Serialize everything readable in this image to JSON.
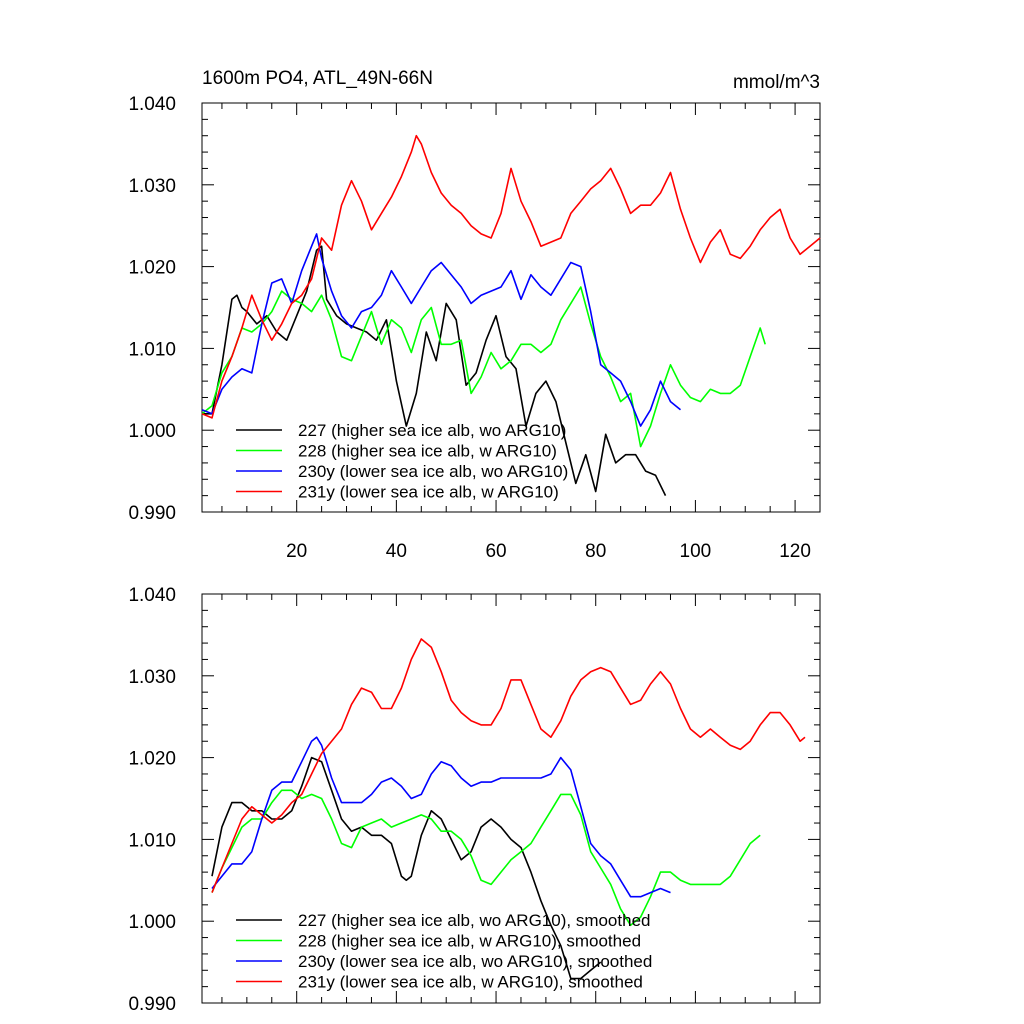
{
  "chart_data": [
    {
      "type": "line",
      "title": "1600m PO4, ATL_49N-66N",
      "units": "mmol/m^3",
      "xlabel": "",
      "ylabel": "",
      "xlim": [
        1,
        125
      ],
      "ylim": [
        0.99,
        1.04
      ],
      "xticks": [
        20,
        40,
        60,
        80,
        100,
        120
      ],
      "xtick_labels": [
        "20",
        "40",
        "60",
        "80",
        "100",
        "120"
      ],
      "yticks": [
        0.99,
        1.0,
        1.01,
        1.02,
        1.03,
        1.04
      ],
      "ytick_labels": [
        "0.990",
        "1.000",
        "1.010",
        "1.020",
        "1.030",
        "1.040"
      ],
      "legend_position": "bottom-left",
      "series": [
        {
          "name": "227 (higher sea ice alb, wo ARG10)",
          "color": "#000000",
          "x": [
            1,
            3,
            5,
            7,
            8,
            9,
            10,
            12,
            14,
            16,
            18,
            20,
            22,
            24,
            25,
            26,
            28,
            30,
            32,
            34,
            36,
            38,
            40,
            42,
            44,
            46,
            48,
            50,
            52,
            54,
            56,
            58,
            60,
            62,
            64,
            66,
            68,
            70,
            72,
            74,
            76,
            78,
            80,
            82,
            84,
            86,
            88,
            90,
            92,
            94
          ],
          "y": [
            1.002,
            1.002,
            1.008,
            1.016,
            1.0165,
            1.015,
            1.0145,
            1.013,
            1.014,
            1.012,
            1.011,
            1.014,
            1.017,
            1.022,
            1.0225,
            1.016,
            1.014,
            1.013,
            1.0125,
            1.012,
            1.011,
            1.0135,
            1.006,
            1.0005,
            1.0045,
            1.012,
            1.0085,
            1.0155,
            1.0135,
            1.0055,
            1.007,
            1.011,
            1.014,
            1.009,
            1.0075,
            1.0005,
            1.0045,
            1.006,
            1.0035,
            0.9985,
            0.9935,
            0.997,
            0.9925,
            0.9995,
            0.996,
            0.997,
            0.997,
            0.995,
            0.9945,
            0.992
          ]
        },
        {
          "name": "228 (higher sea ice alb, w ARG10)",
          "color": "#00ff00",
          "x": [
            1,
            3,
            5,
            7,
            9,
            11,
            13,
            15,
            17,
            19,
            21,
            23,
            25,
            27,
            29,
            31,
            33,
            35,
            37,
            39,
            41,
            43,
            45,
            47,
            49,
            51,
            53,
            55,
            57,
            59,
            61,
            63,
            65,
            67,
            69,
            71,
            73,
            75,
            77,
            79,
            81,
            83,
            85,
            87,
            89,
            91,
            93,
            95,
            97,
            99,
            101,
            103,
            105,
            107,
            109,
            111,
            113,
            114
          ],
          "y": [
            1.002,
            1.003,
            1.007,
            1.009,
            1.0125,
            1.012,
            1.013,
            1.0145,
            1.017,
            1.016,
            1.0155,
            1.0145,
            1.0165,
            1.0135,
            1.009,
            1.0085,
            1.0115,
            1.0145,
            1.0105,
            1.0135,
            1.0125,
            1.0095,
            1.0135,
            1.015,
            1.0105,
            1.0105,
            1.011,
            1.0045,
            1.0065,
            1.0095,
            1.0075,
            1.0085,
            1.0105,
            1.0105,
            1.0095,
            1.0105,
            1.0135,
            1.0155,
            1.0175,
            1.013,
            1.009,
            1.0065,
            1.0035,
            1.0045,
            0.998,
            1.0005,
            1.0045,
            1.008,
            1.0055,
            1.004,
            1.0035,
            1.005,
            1.0045,
            1.0045,
            1.0055,
            1.009,
            1.0125,
            1.0105
          ]
        },
        {
          "name": "230y (lower sea ice alb, wo ARG10)",
          "color": "#0000ff",
          "x": [
            1,
            3,
            5,
            7,
            9,
            11,
            13,
            15,
            17,
            19,
            21,
            23,
            24,
            25,
            27,
            29,
            31,
            33,
            35,
            37,
            39,
            41,
            43,
            45,
            47,
            49,
            51,
            53,
            55,
            57,
            59,
            61,
            63,
            65,
            67,
            69,
            71,
            73,
            75,
            77,
            79,
            81,
            83,
            85,
            87,
            89,
            91,
            93,
            95,
            97
          ],
          "y": [
            1.0025,
            1.002,
            1.005,
            1.0065,
            1.0075,
            1.007,
            1.013,
            1.018,
            1.0185,
            1.0155,
            1.0195,
            1.0225,
            1.024,
            1.021,
            1.017,
            1.014,
            1.0125,
            1.0145,
            1.015,
            1.0165,
            1.0195,
            1.0175,
            1.0155,
            1.0175,
            1.0195,
            1.0205,
            1.019,
            1.0175,
            1.0155,
            1.0165,
            1.017,
            1.0175,
            1.0195,
            1.016,
            1.019,
            1.0175,
            1.0165,
            1.0185,
            1.0205,
            1.02,
            1.0145,
            1.008,
            1.007,
            1.006,
            1.0035,
            1.0005,
            1.0025,
            1.006,
            1.0035,
            1.0025
          ]
        },
        {
          "name": "231y (lower sea ice alb, w ARG10)",
          "color": "#ff0000",
          "x": [
            1,
            3,
            5,
            7,
            9,
            11,
            13,
            15,
            17,
            19,
            21,
            23,
            25,
            27,
            29,
            31,
            33,
            35,
            37,
            39,
            41,
            43,
            44,
            45,
            47,
            49,
            51,
            53,
            55,
            57,
            59,
            61,
            63,
            65,
            67,
            69,
            71,
            73,
            75,
            77,
            79,
            81,
            83,
            85,
            87,
            89,
            91,
            93,
            95,
            97,
            99,
            101,
            103,
            105,
            107,
            109,
            111,
            113,
            115,
            117,
            119,
            121,
            123,
            125
          ],
          "y": [
            1.002,
            1.0015,
            1.006,
            1.009,
            1.0125,
            1.0165,
            1.0135,
            1.011,
            1.013,
            1.0155,
            1.0165,
            1.0185,
            1.0235,
            1.022,
            1.0275,
            1.0305,
            1.028,
            1.0245,
            1.0265,
            1.0285,
            1.031,
            1.034,
            1.036,
            1.035,
            1.0315,
            1.029,
            1.0275,
            1.0265,
            1.025,
            1.024,
            1.0235,
            1.0265,
            1.032,
            1.028,
            1.0255,
            1.0225,
            1.023,
            1.0235,
            1.0265,
            1.028,
            1.0295,
            1.0305,
            1.032,
            1.0295,
            1.0265,
            1.0275,
            1.0275,
            1.029,
            1.0315,
            1.027,
            1.0235,
            1.0205,
            1.023,
            1.0245,
            1.0215,
            1.021,
            1.0225,
            1.0245,
            1.026,
            1.027,
            1.0235,
            1.0215,
            1.0225,
            1.0235
          ]
        }
      ]
    },
    {
      "type": "line",
      "title": "",
      "xlabel": "",
      "ylabel": "",
      "xlim": [
        1,
        125
      ],
      "ylim": [
        0.99,
        1.04
      ],
      "xticks": [
        20,
        40,
        60,
        80,
        100,
        120
      ],
      "yticks": [
        0.99,
        1.0,
        1.01,
        1.02,
        1.03,
        1.04
      ],
      "ytick_labels": [
        "0.990",
        "1.000",
        "1.010",
        "1.020",
        "1.030",
        "1.040"
      ],
      "legend_position": "bottom-left",
      "series": [
        {
          "name": "227 (higher sea ice alb, wo ARG10), smoothed",
          "color": "#000000",
          "x": [
            3,
            5,
            7,
            9,
            11,
            13,
            15,
            17,
            19,
            21,
            23,
            25,
            27,
            29,
            31,
            33,
            35,
            37,
            39,
            41,
            42,
            43,
            45,
            47,
            49,
            51,
            53,
            55,
            57,
            59,
            61,
            63,
            65,
            67,
            69,
            71,
            73,
            75,
            77,
            79,
            81
          ],
          "y": [
            1.0055,
            1.0115,
            1.0145,
            1.0145,
            1.0135,
            1.0135,
            1.0125,
            1.0125,
            1.0135,
            1.0165,
            1.02,
            1.0195,
            1.016,
            1.0125,
            1.011,
            1.0115,
            1.0105,
            1.0105,
            1.0095,
            1.0055,
            1.005,
            1.0055,
            1.0105,
            1.0135,
            1.0125,
            1.01,
            1.0075,
            1.0085,
            1.0115,
            1.0125,
            1.0115,
            1.01,
            1.009,
            1.006,
            1.0025,
            0.9995,
            0.997,
            0.993,
            0.993,
            0.994,
            0.995
          ]
        },
        {
          "name": "228 (higher sea ice alb, w ARG10), smoothed",
          "color": "#00ff00",
          "x": [
            3,
            5,
            7,
            9,
            11,
            13,
            15,
            17,
            19,
            21,
            23,
            25,
            27,
            29,
            31,
            33,
            35,
            37,
            39,
            41,
            43,
            45,
            47,
            49,
            51,
            53,
            55,
            57,
            59,
            61,
            63,
            65,
            67,
            69,
            71,
            73,
            75,
            77,
            79,
            81,
            83,
            85,
            87,
            89,
            91,
            93,
            95,
            97,
            99,
            101,
            103,
            105,
            107,
            109,
            111,
            113
          ],
          "y": [
            1.0035,
            1.0065,
            1.009,
            1.0115,
            1.0125,
            1.0125,
            1.0145,
            1.016,
            1.016,
            1.015,
            1.0155,
            1.015,
            1.0125,
            1.0095,
            1.009,
            1.0115,
            1.012,
            1.0125,
            1.0115,
            1.012,
            1.0125,
            1.013,
            1.0125,
            1.011,
            1.011,
            1.01,
            1.008,
            1.005,
            1.0045,
            1.006,
            1.0075,
            1.0085,
            1.0095,
            1.0115,
            1.0135,
            1.0155,
            1.0155,
            1.013,
            1.0085,
            1.0065,
            1.0045,
            1.0015,
            0.9995,
            1.0005,
            1.003,
            1.006,
            1.006,
            1.005,
            1.0045,
            1.0045,
            1.0045,
            1.0045,
            1.0055,
            1.0075,
            1.0095,
            1.0105
          ]
        },
        {
          "name": "230y (lower sea ice alb, wo ARG10), smoothed",
          "color": "#0000ff",
          "x": [
            3,
            5,
            7,
            9,
            11,
            13,
            15,
            17,
            19,
            21,
            23,
            24,
            25,
            27,
            29,
            31,
            33,
            35,
            37,
            39,
            41,
            43,
            45,
            47,
            49,
            51,
            53,
            55,
            57,
            59,
            61,
            63,
            65,
            67,
            69,
            71,
            73,
            75,
            77,
            79,
            81,
            83,
            85,
            87,
            89,
            91,
            93,
            95
          ],
          "y": [
            1.004,
            1.0055,
            1.007,
            1.007,
            1.0085,
            1.0125,
            1.016,
            1.017,
            1.017,
            1.0195,
            1.022,
            1.0225,
            1.0215,
            1.0175,
            1.0145,
            1.0145,
            1.0145,
            1.0155,
            1.017,
            1.0175,
            1.0165,
            1.015,
            1.0155,
            1.018,
            1.0195,
            1.019,
            1.0175,
            1.0165,
            1.017,
            1.017,
            1.0175,
            1.0175,
            1.0175,
            1.0175,
            1.0175,
            1.018,
            1.02,
            1.0185,
            1.014,
            1.0095,
            1.008,
            1.007,
            1.005,
            1.003,
            1.003,
            1.0035,
            1.004,
            1.0035
          ]
        },
        {
          "name": "231y (lower sea ice alb, w ARG10), smoothed",
          "color": "#ff0000",
          "x": [
            3,
            5,
            7,
            9,
            11,
            13,
            15,
            17,
            19,
            21,
            23,
            25,
            27,
            29,
            31,
            33,
            35,
            37,
            39,
            41,
            43,
            45,
            47,
            49,
            51,
            53,
            55,
            57,
            59,
            61,
            63,
            65,
            67,
            69,
            71,
            73,
            75,
            77,
            79,
            81,
            83,
            85,
            87,
            89,
            91,
            93,
            95,
            97,
            99,
            101,
            103,
            105,
            107,
            109,
            111,
            113,
            115,
            117,
            119,
            121,
            122
          ],
          "y": [
            1.0035,
            1.0065,
            1.0095,
            1.0125,
            1.014,
            1.013,
            1.012,
            1.013,
            1.0145,
            1.0155,
            1.018,
            1.0205,
            1.022,
            1.0235,
            1.0265,
            1.0285,
            1.028,
            1.026,
            1.026,
            1.0285,
            1.032,
            1.0345,
            1.0335,
            1.0305,
            1.027,
            1.0255,
            1.0245,
            1.024,
            1.024,
            1.026,
            1.0295,
            1.0295,
            1.0265,
            1.0235,
            1.0225,
            1.0245,
            1.0275,
            1.0295,
            1.0305,
            1.031,
            1.0305,
            1.0285,
            1.0265,
            1.027,
            1.029,
            1.0305,
            1.029,
            1.026,
            1.0235,
            1.0225,
            1.0235,
            1.0225,
            1.0215,
            1.021,
            1.022,
            1.024,
            1.0255,
            1.0255,
            1.024,
            1.022,
            1.0225
          ]
        }
      ]
    }
  ]
}
